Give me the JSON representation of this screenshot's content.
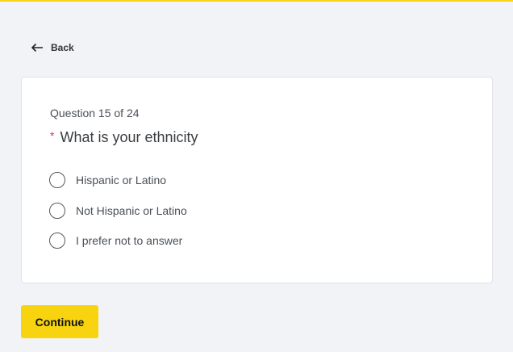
{
  "colors": {
    "accent": "#f7d40f",
    "required": "#e0315a",
    "background": "#f2f3f7"
  },
  "nav": {
    "back_label": "Back",
    "back_icon": "arrow-left-icon"
  },
  "question": {
    "progress": "Question 15 of 24",
    "required_marker": "*",
    "title": "What is your ethnicity",
    "options": [
      {
        "label": "Hispanic or Latino",
        "selected": false
      },
      {
        "label": "Not Hispanic or Latino",
        "selected": false
      },
      {
        "label": "I prefer not to answer",
        "selected": false
      }
    ]
  },
  "actions": {
    "continue_label": "Continue"
  }
}
